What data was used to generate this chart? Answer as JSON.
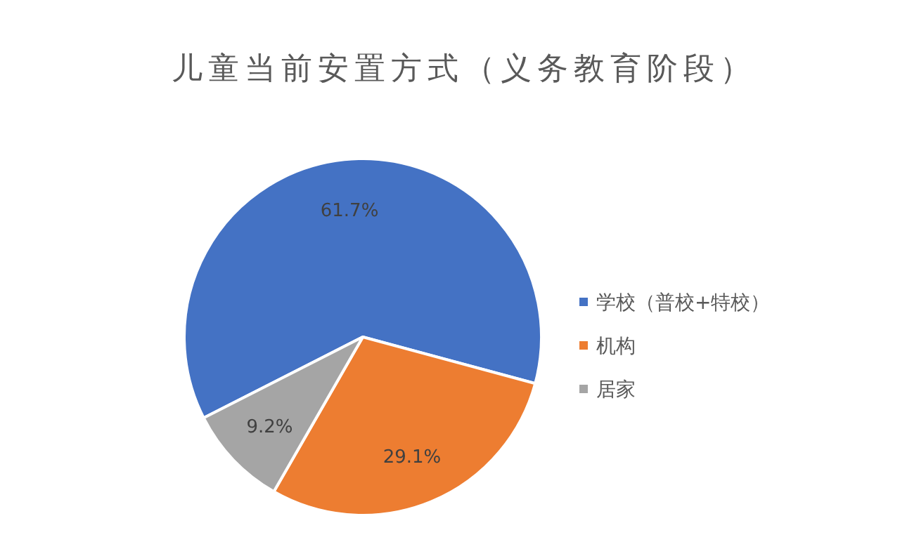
{
  "chart_data": {
    "type": "pie",
    "title": "儿童当前安置方式（义务教育阶段）",
    "categories": [
      "学校（普校+特校）",
      "机构",
      "居家"
    ],
    "values": [
      61.7,
      29.1,
      9.2
    ],
    "colors": [
      "#4472c4",
      "#ed7d31",
      "#a5a5a5"
    ],
    "value_labels": [
      "61.7%",
      "29.1%",
      "9.2%"
    ],
    "legend": "right"
  }
}
